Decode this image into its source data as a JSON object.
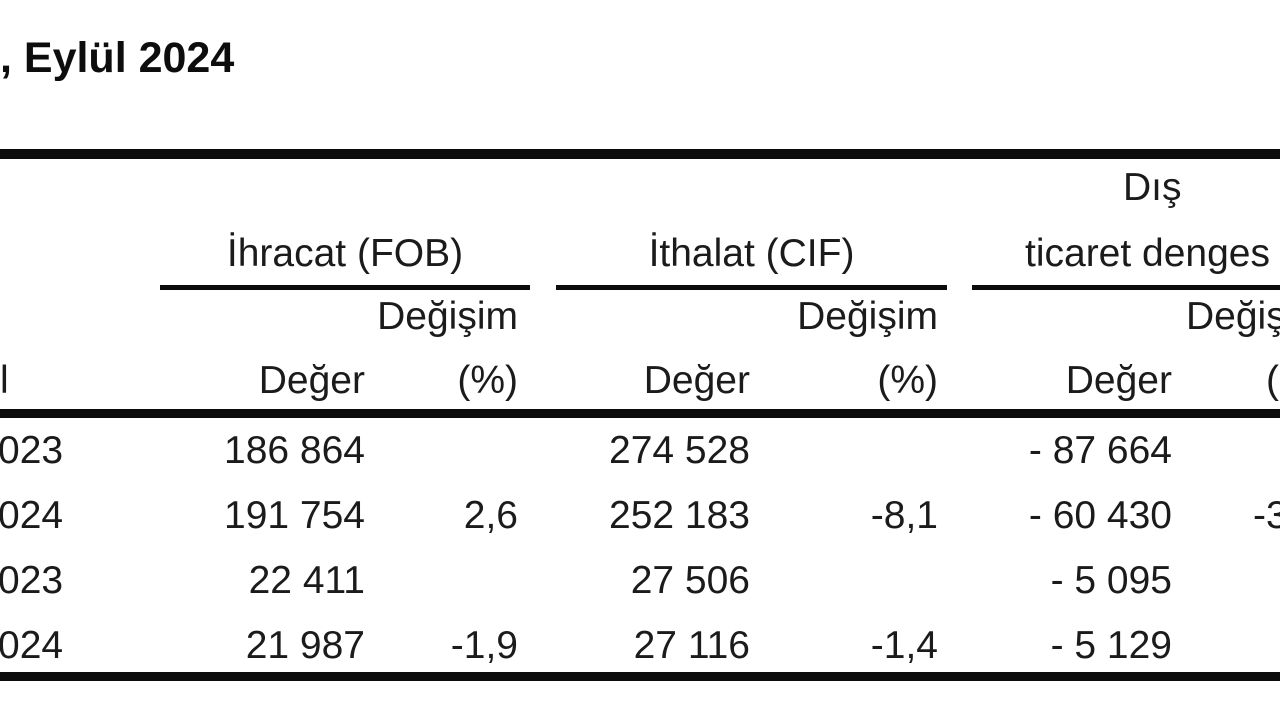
{
  "page": {
    "title_visible": ", Eylül 2024",
    "colors": {
      "background": "#ffffff",
      "text": "#1b1b1b",
      "rule": "#0c0c0c"
    }
  },
  "table": {
    "groups": {
      "export_label": "İhracat (FOB)",
      "import_label": "İthalat (CIF)",
      "balance_label_line1": "Dış",
      "balance_label_line2_visible": "ticaret denges"
    },
    "subheaders": {
      "change_export": "Değişim",
      "change_import": "Değişim",
      "change_balance_visible": "Değiş",
      "value_export": "Değer",
      "percent_export": "(%)",
      "value_import": "Değer",
      "percent_import": "(%)",
      "value_balance": "Değer",
      "percent_balance_visible": "(",
      "row_label_visible": "l"
    },
    "rows": [
      {
        "year_visible": "023",
        "export_value": "186 864",
        "export_change": "",
        "import_value": "274 528",
        "import_change": "",
        "balance_value": "- 87 664",
        "balance_change_visible": ""
      },
      {
        "year_visible": "024",
        "export_value": "191 754",
        "export_change": "2,6",
        "import_value": "252 183",
        "import_change": "-8,1",
        "balance_value": "- 60 430",
        "balance_change_visible": "-3"
      },
      {
        "year_visible": "023",
        "export_value": "22 411",
        "export_change": "",
        "import_value": "27 506",
        "import_change": "",
        "balance_value": "- 5 095",
        "balance_change_visible": ""
      },
      {
        "year_visible": "024",
        "export_value": "21 987",
        "export_change": "-1,9",
        "import_value": "27 116",
        "import_change": "-1,4",
        "balance_value": "- 5 129",
        "balance_change_visible": ""
      }
    ]
  }
}
